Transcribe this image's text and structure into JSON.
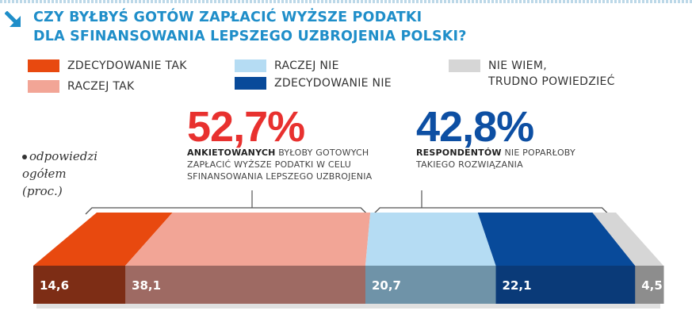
{
  "title": {
    "line1": "CZY BYŁBYŚ GOTÓW ZAPŁACIĆ WYŻSZE PODATKI",
    "line2": "DLA SFINANSOWANIA LEPSZEGO UZBROJENIA POLSKI?"
  },
  "legend": [
    {
      "label": "ZDECYDOWANIE TAK",
      "color": "#e8490f"
    },
    {
      "label": "RACZEJ TAK",
      "color": "#f2a596"
    },
    {
      "label": "RACZEJ NIE",
      "color": "#b5dcf3"
    },
    {
      "label": "ZDECYDOWANIE NIE",
      "color": "#084a9a"
    },
    {
      "label_line1": "NIE WIEM,",
      "label_line2": "TRUDNO POWIEDZIEĆ",
      "color": "#d6d6d6"
    }
  ],
  "summary": {
    "yes": {
      "value": "52,7%",
      "bold_word": "ANKIETOWANYCH",
      "text_line1": " BYŁOBY GOTOWYCH",
      "text_line2": "ZAPŁACIĆ WYŻSZE PODATKI W CELU",
      "text_line3": "SFINANSOWANIA LEPSZEGO UZBROJENIA",
      "color": "#e8312f"
    },
    "no": {
      "value": "42,8%",
      "bold_word": "RESPONDENTÓW",
      "text_line1": " NIE POPARŁOBY",
      "text_line2": "TAKIEGO ROZWIĄZANIA",
      "color": "#0d4fa3"
    }
  },
  "side_note": {
    "line1": "odpowiedzi",
    "line2": "ogółem",
    "line3": "(proc.)"
  },
  "chart_data": {
    "type": "bar",
    "orientation": "horizontal-stacked",
    "categories": [
      "ZDECYDOWANIE TAK",
      "RACZEJ TAK",
      "RACZEJ NIE",
      "ZDECYDOWANIE NIE",
      "NIE WIEM, TRUDNO POWIEDZIEĆ"
    ],
    "values": [
      14.6,
      38.1,
      20.7,
      22.1,
      4.5
    ],
    "value_labels": [
      "14,6",
      "38,1",
      "20,7",
      "22,1",
      "4,5"
    ],
    "unit": "proc.",
    "colors_top": [
      "#e8490f",
      "#f2a596",
      "#b5dcf3",
      "#084a9a",
      "#d6d6d6"
    ],
    "colors_front": [
      "#7d2d15",
      "#9e6a63",
      "#6f93a8",
      "#0a3a78",
      "#8d8d8d"
    ],
    "groups": [
      {
        "label": "52,7%",
        "from": 0,
        "to": 2
      },
      {
        "label": "42,8%",
        "from": 2,
        "to": 4
      }
    ]
  }
}
